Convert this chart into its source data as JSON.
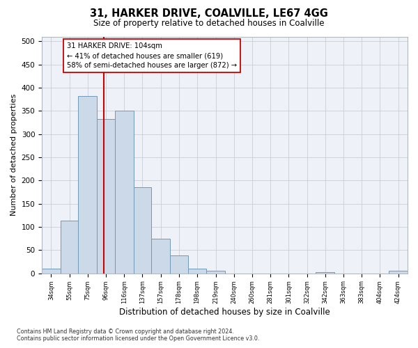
{
  "title": "31, HARKER DRIVE, COALVILLE, LE67 4GG",
  "subtitle": "Size of property relative to detached houses in Coalville",
  "xlabel": "Distribution of detached houses by size in Coalville",
  "ylabel": "Number of detached properties",
  "bar_edges": [
    34,
    55,
    75,
    96,
    116,
    137,
    157,
    178,
    198,
    219,
    240,
    260,
    281,
    301,
    322,
    342,
    363,
    383,
    404,
    424,
    445
  ],
  "bar_heights": [
    10,
    114,
    382,
    333,
    350,
    185,
    75,
    38,
    10,
    5,
    0,
    0,
    0,
    0,
    0,
    3,
    0,
    0,
    0,
    5
  ],
  "bar_color": "#ccd9e8",
  "bar_edge_color": "#7098b8",
  "vline_x": 104,
  "vline_color": "#cc0000",
  "annotation_text": "31 HARKER DRIVE: 104sqm\n← 41% of detached houses are smaller (619)\n58% of semi-detached houses are larger (872) →",
  "annotation_box_facecolor": "#ffffff",
  "annotation_box_edgecolor": "#cc0000",
  "ylim": [
    0,
    510
  ],
  "yticks": [
    0,
    50,
    100,
    150,
    200,
    250,
    300,
    350,
    400,
    450,
    500
  ],
  "footer_text": "Contains HM Land Registry data © Crown copyright and database right 2024.\nContains public sector information licensed under the Open Government Licence v3.0.",
  "background_color": "#ffffff",
  "plot_background_color": "#eef2f8",
  "grid_color": "#c8cdd8"
}
